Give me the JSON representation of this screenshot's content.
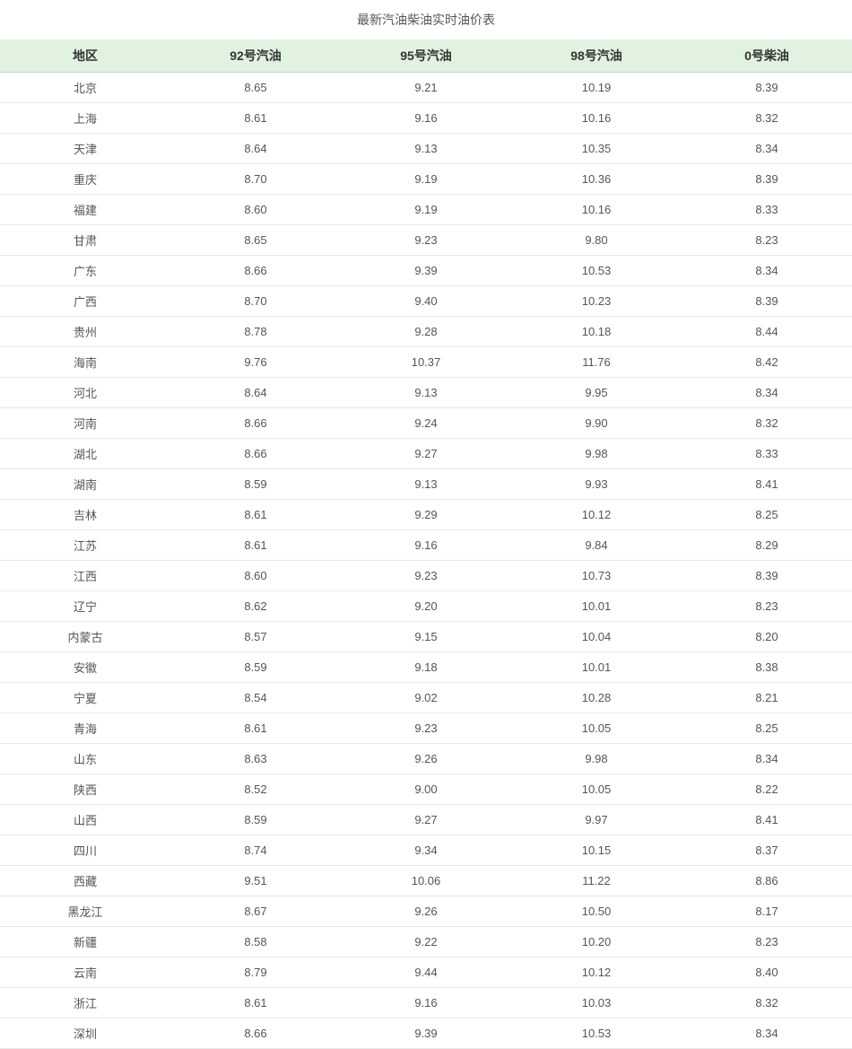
{
  "title": "最新汽油柴油实时油价表",
  "table": {
    "type": "table",
    "header_bg_color": "#e2f2e0",
    "header_text_color": "#333333",
    "cell_text_color": "#555555",
    "row_border_color": "#e8e8e8",
    "background_color": "#ffffff",
    "header_fontsize": 14,
    "cell_fontsize": 13,
    "columns": [
      "地区",
      "92号汽油",
      "95号汽油",
      "98号汽油",
      "0号柴油"
    ],
    "column_widths": [
      "20%",
      "20%",
      "20%",
      "20%",
      "20%"
    ],
    "rows": [
      [
        "北京",
        "8.65",
        "9.21",
        "10.19",
        "8.39"
      ],
      [
        "上海",
        "8.61",
        "9.16",
        "10.16",
        "8.32"
      ],
      [
        "天津",
        "8.64",
        "9.13",
        "10.35",
        "8.34"
      ],
      [
        "重庆",
        "8.70",
        "9.19",
        "10.36",
        "8.39"
      ],
      [
        "福建",
        "8.60",
        "9.19",
        "10.16",
        "8.33"
      ],
      [
        "甘肃",
        "8.65",
        "9.23",
        "9.80",
        "8.23"
      ],
      [
        "广东",
        "8.66",
        "9.39",
        "10.53",
        "8.34"
      ],
      [
        "广西",
        "8.70",
        "9.40",
        "10.23",
        "8.39"
      ],
      [
        "贵州",
        "8.78",
        "9.28",
        "10.18",
        "8.44"
      ],
      [
        "海南",
        "9.76",
        "10.37",
        "11.76",
        "8.42"
      ],
      [
        "河北",
        "8.64",
        "9.13",
        "9.95",
        "8.34"
      ],
      [
        "河南",
        "8.66",
        "9.24",
        "9.90",
        "8.32"
      ],
      [
        "湖北",
        "8.66",
        "9.27",
        "9.98",
        "8.33"
      ],
      [
        "湖南",
        "8.59",
        "9.13",
        "9.93",
        "8.41"
      ],
      [
        "吉林",
        "8.61",
        "9.29",
        "10.12",
        "8.25"
      ],
      [
        "江苏",
        "8.61",
        "9.16",
        "9.84",
        "8.29"
      ],
      [
        "江西",
        "8.60",
        "9.23",
        "10.73",
        "8.39"
      ],
      [
        "辽宁",
        "8.62",
        "9.20",
        "10.01",
        "8.23"
      ],
      [
        "内蒙古",
        "8.57",
        "9.15",
        "10.04",
        "8.20"
      ],
      [
        "安徽",
        "8.59",
        "9.18",
        "10.01",
        "8.38"
      ],
      [
        "宁夏",
        "8.54",
        "9.02",
        "10.28",
        "8.21"
      ],
      [
        "青海",
        "8.61",
        "9.23",
        "10.05",
        "8.25"
      ],
      [
        "山东",
        "8.63",
        "9.26",
        "9.98",
        "8.34"
      ],
      [
        "陕西",
        "8.52",
        "9.00",
        "10.05",
        "8.22"
      ],
      [
        "山西",
        "8.59",
        "9.27",
        "9.97",
        "8.41"
      ],
      [
        "四川",
        "8.74",
        "9.34",
        "10.15",
        "8.37"
      ],
      [
        "西藏",
        "9.51",
        "10.06",
        "11.22",
        "8.86"
      ],
      [
        "黑龙江",
        "8.67",
        "9.26",
        "10.50",
        "8.17"
      ],
      [
        "新疆",
        "8.58",
        "9.22",
        "10.20",
        "8.23"
      ],
      [
        "云南",
        "8.79",
        "9.44",
        "10.12",
        "8.40"
      ],
      [
        "浙江",
        "8.61",
        "9.16",
        "10.03",
        "8.32"
      ],
      [
        "深圳",
        "8.66",
        "9.39",
        "10.53",
        "8.34"
      ]
    ]
  }
}
